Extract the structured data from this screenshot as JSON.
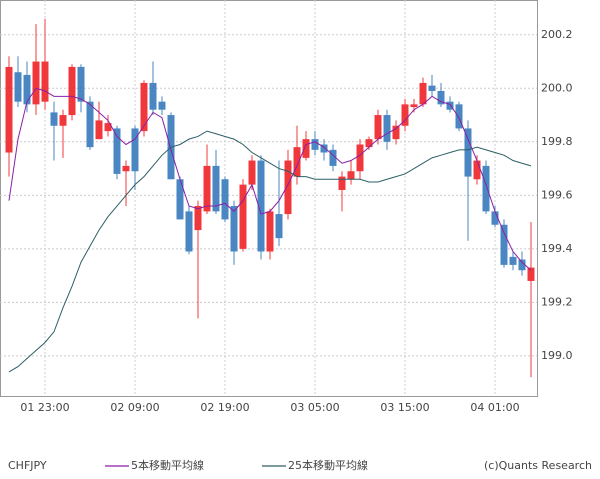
{
  "chart_data": {
    "type": "candlestick",
    "symbol": "CHFJPY",
    "credit": "(c)Quants Research",
    "categories": [
      null,
      null,
      null,
      null,
      "01 23:00",
      null,
      null,
      null,
      null,
      null,
      null,
      null,
      null,
      null,
      "02 09:00",
      null,
      null,
      null,
      null,
      null,
      null,
      null,
      null,
      null,
      "02 19:00",
      null,
      null,
      null,
      null,
      null,
      null,
      null,
      null,
      null,
      "03 05:00",
      null,
      null,
      null,
      null,
      null,
      null,
      null,
      null,
      null,
      "03 15:00",
      null,
      null,
      null,
      null,
      null,
      null,
      null,
      null,
      null,
      "04 01:00",
      null,
      null,
      null,
      null
    ],
    "open": [
      199.76,
      200.06,
      200.05,
      199.94,
      199.95,
      199.91,
      199.86,
      199.9,
      200.08,
      199.95,
      199.81,
      199.84,
      199.85,
      199.69,
      199.85,
      199.84,
      200.02,
      199.95,
      199.9,
      199.66,
      199.54,
      199.47,
      199.54,
      199.71,
      199.66,
      199.56,
      199.4,
      199.64,
      199.73,
      199.39,
      199.53,
      199.53,
      199.67,
      199.74,
      199.81,
      199.79,
      199.77,
      199.62,
      199.66,
      199.69,
      199.78,
      199.81,
      199.9,
      199.81,
      199.86,
      199.93,
      199.94,
      200.01,
      199.99,
      199.95,
      199.94,
      199.85,
      199.66,
      199.71,
      199.54,
      199.49,
      199.37,
      199.36,
      199.28
    ],
    "high": [
      200.12,
      200.12,
      200.1,
      200.24,
      200.26,
      199.95,
      199.92,
      200.09,
      200.09,
      199.97,
      199.95,
      199.9,
      199.86,
      199.73,
      199.86,
      200.03,
      200.1,
      199.97,
      199.91,
      199.67,
      199.56,
      199.58,
      199.79,
      199.77,
      199.67,
      199.58,
      199.66,
      199.75,
      199.75,
      199.55,
      199.73,
      199.77,
      199.86,
      199.84,
      199.84,
      199.81,
      199.79,
      199.69,
      199.73,
      199.81,
      199.82,
      199.92,
      199.92,
      199.88,
      199.96,
      199.96,
      200.04,
      200.05,
      200.02,
      199.97,
      199.95,
      199.88,
      199.75,
      199.73,
      199.56,
      199.51,
      199.39,
      199.39,
      199.5
    ],
    "low": [
      199.67,
      199.93,
      199.91,
      199.9,
      199.92,
      199.73,
      199.74,
      199.88,
      199.91,
      199.77,
      199.81,
      199.82,
      199.66,
      199.56,
      199.62,
      199.82,
      199.9,
      199.9,
      199.66,
      199.51,
      199.38,
      199.14,
      199.53,
      199.53,
      199.5,
      199.34,
      199.39,
      199.62,
      199.36,
      199.36,
      199.41,
      199.51,
      199.64,
      199.73,
      199.75,
      199.73,
      199.69,
      199.54,
      199.64,
      199.66,
      199.77,
      199.79,
      199.77,
      199.79,
      199.84,
      199.91,
      199.93,
      199.97,
      199.93,
      199.91,
      199.84,
      199.43,
      199.64,
      199.53,
      199.48,
      199.33,
      199.32,
      199.3,
      198.92
    ],
    "close": [
      200.08,
      199.95,
      199.94,
      200.1,
      200.1,
      199.86,
      199.9,
      200.08,
      199.95,
      199.78,
      199.88,
      199.87,
      199.68,
      199.71,
      199.69,
      200.02,
      199.92,
      199.92,
      199.66,
      199.51,
      199.39,
      199.56,
      199.71,
      199.54,
      199.51,
      199.39,
      199.64,
      199.73,
      199.39,
      199.54,
      199.44,
      199.73,
      199.78,
      199.81,
      199.77,
      199.76,
      199.71,
      199.67,
      199.69,
      199.79,
      199.81,
      199.9,
      199.8,
      199.86,
      199.94,
      199.94,
      200.02,
      199.99,
      199.94,
      199.92,
      199.85,
      199.67,
      199.73,
      199.54,
      199.49,
      199.34,
      199.34,
      199.32,
      199.33
    ],
    "up_color": "#f0383c",
    "down_color": "#4a87c2",
    "lines": [
      {
        "name": "5本移動平均線",
        "color": "#8a1fa6",
        "values": [
          199.58,
          199.81,
          199.95,
          200.0,
          199.99,
          199.97,
          199.97,
          199.97,
          199.96,
          199.94,
          199.91,
          199.88,
          199.82,
          199.79,
          199.81,
          199.86,
          199.91,
          199.89,
          199.77,
          199.66,
          199.56,
          199.55,
          199.56,
          199.56,
          199.57,
          199.54,
          199.58,
          199.64,
          199.53,
          199.54,
          199.58,
          199.64,
          199.71,
          199.79,
          199.8,
          199.78,
          199.75,
          199.72,
          199.73,
          199.75,
          199.78,
          199.81,
          199.83,
          199.85,
          199.88,
          199.92,
          199.94,
          199.97,
          199.95,
          199.94,
          199.89,
          199.81,
          199.73,
          199.64,
          199.54,
          199.46,
          199.39,
          199.35,
          199.32
        ]
      },
      {
        "name": "25本移動平均線",
        "color": "#2c5f66",
        "values": [
          198.94,
          198.96,
          198.99,
          199.02,
          199.05,
          199.09,
          199.18,
          199.26,
          199.35,
          199.41,
          199.47,
          199.52,
          199.56,
          199.6,
          199.64,
          199.67,
          199.71,
          199.75,
          199.78,
          199.79,
          199.81,
          199.82,
          199.84,
          199.83,
          199.82,
          199.81,
          199.79,
          199.76,
          199.74,
          199.72,
          199.7,
          199.69,
          199.67,
          199.67,
          199.66,
          199.66,
          199.66,
          199.66,
          199.66,
          199.66,
          199.65,
          199.65,
          199.66,
          199.67,
          199.68,
          199.7,
          199.72,
          199.74,
          199.75,
          199.76,
          199.77,
          199.77,
          199.78,
          199.77,
          199.76,
          199.75,
          199.73,
          199.72,
          199.71
        ]
      }
    ],
    "ylim": [
      198.85,
      200.33
    ],
    "yticks": [
      {
        "value": 199,
        "label": "199.0"
      },
      199.2,
      199.4,
      199.6,
      199.8,
      {
        "value": 200,
        "label": "200.0"
      },
      200.2
    ],
    "grid": true
  }
}
